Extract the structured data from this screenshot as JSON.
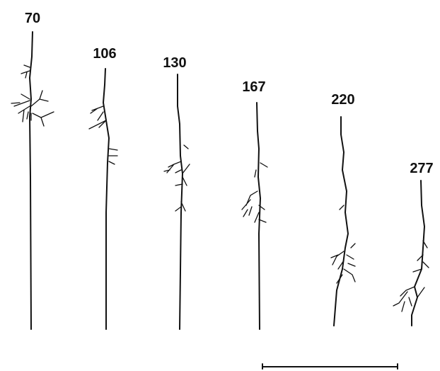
{
  "labels": [
    "70",
    "106",
    "130",
    "167",
    "220",
    "277"
  ]
}
